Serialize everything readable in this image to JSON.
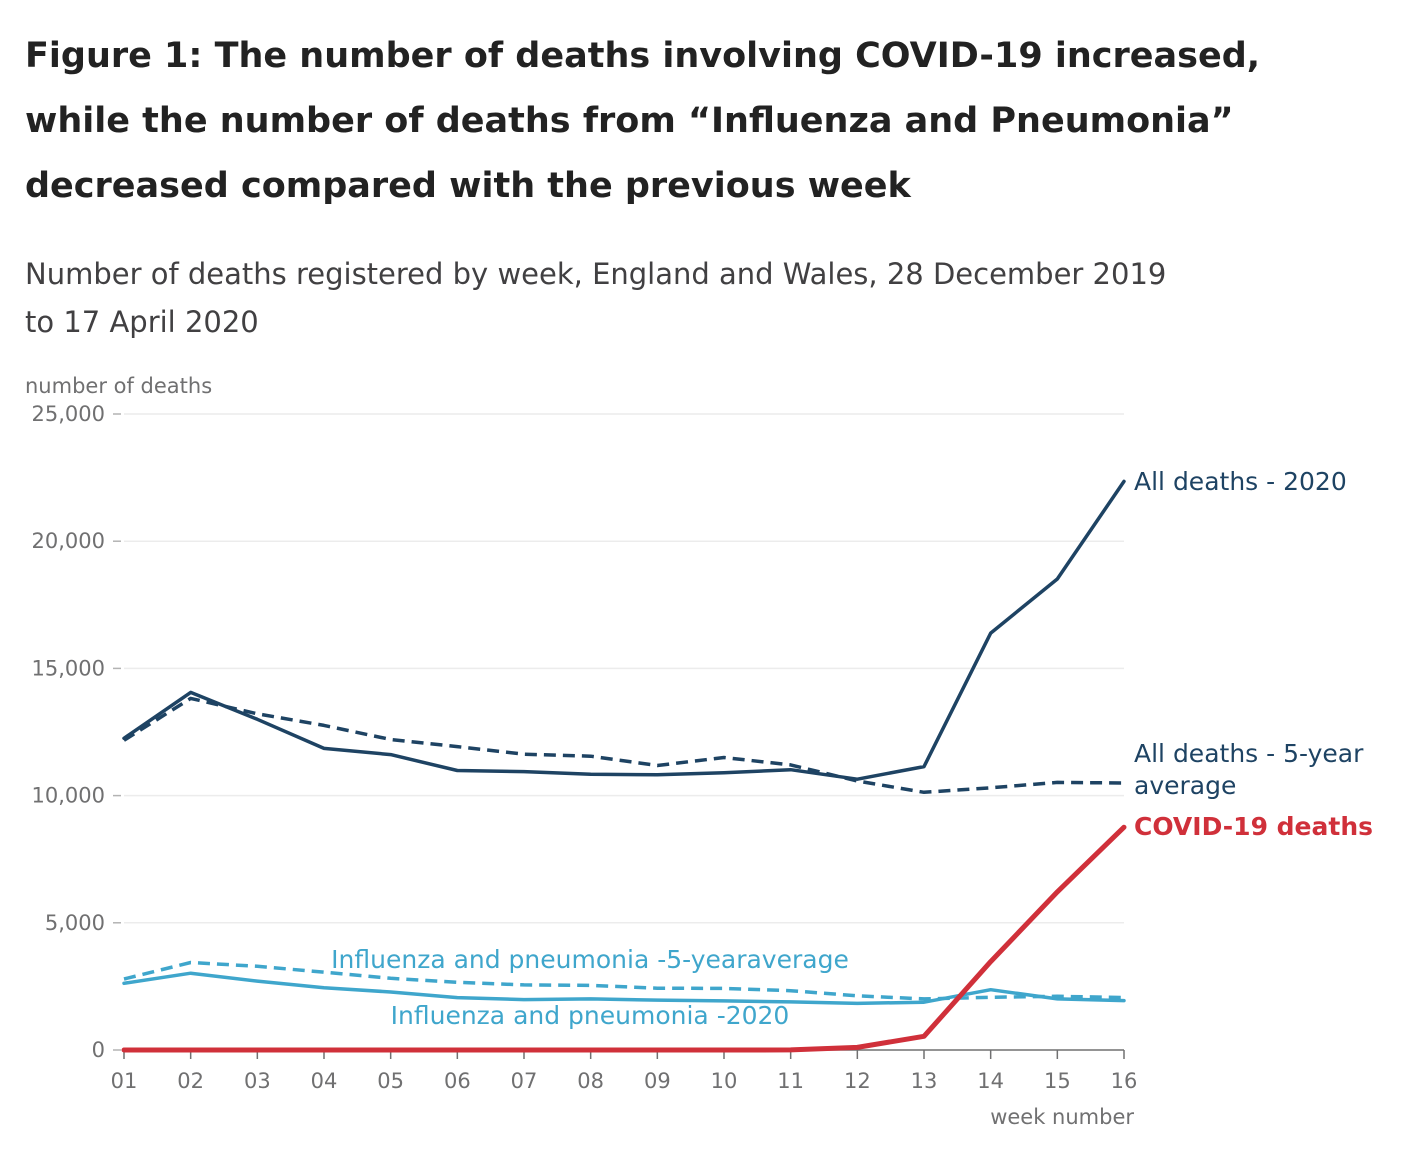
{
  "title_lines": [
    "Figure 1: The number of deaths involving COVID-19 increased,",
    "while the number of deaths from “Influenza and Pneumonia”",
    "decreased compared with the previous week"
  ],
  "subtitle_lines": [
    "Number of deaths registered by week, England and Wales, 28 December 2019",
    "to 17 April 2020"
  ],
  "chart_data": {
    "type": "line",
    "title": "Figure 1: The number of deaths involving COVID-19 increased, while the number of deaths from “Influenza and Pneumonia” decreased compared with the previous week",
    "subtitle": "Number of deaths registered by week, England and Wales, 28 December 2019 to 17 April 2020",
    "xlabel": "week number",
    "ylabel": "number of deaths",
    "ylim": [
      0,
      25000
    ],
    "yticks": [
      0,
      5000,
      10000,
      15000,
      20000,
      25000
    ],
    "ytick_labels": [
      "0",
      "5,000",
      "10,000",
      "15,000",
      "20,000",
      "25,000"
    ],
    "x": [
      "01",
      "02",
      "03",
      "04",
      "05",
      "06",
      "07",
      "08",
      "09",
      "10",
      "11",
      "12",
      "13",
      "14",
      "15",
      "16"
    ],
    "grid": "horizontal",
    "legend": "direct labels at line ends",
    "series": [
      {
        "name": "All deaths - 2020",
        "label_lines": [
          "All deaths - 2020"
        ],
        "color": "#1e4363",
        "style": "solid",
        "values": [
          12254,
          14058,
          13000,
          11856,
          11612,
          10986,
          10944,
          10841,
          10816,
          10895,
          11019,
          10645,
          11141,
          16387,
          18516,
          22351
        ]
      },
      {
        "name": "All deaths - 5-year average",
        "label_lines": [
          "All deaths - 5-year",
          "average"
        ],
        "color": "#1e4363",
        "style": "dashed",
        "values": [
          12175,
          13822,
          13216,
          12760,
          12206,
          11925,
          11627,
          11548,
          11183,
          11498,
          11205,
          10573,
          10130,
          10305,
          10520,
          10497
        ]
      },
      {
        "name": "COVID-19 deaths",
        "label_lines": [
          "COVID-19 deaths"
        ],
        "color": "#d0303a",
        "style": "solid-bold",
        "values": [
          0,
          0,
          0,
          0,
          0,
          0,
          0,
          0,
          0,
          0,
          5,
          103,
          539,
          3475,
          6213,
          8758
        ]
      },
      {
        "name": "Influenza and pneumonia -5-yearaverage",
        "label_lines": [
          "Influenza and pneumonia -5-yearaverage"
        ],
        "color": "#3fa6cc",
        "style": "dashed",
        "values": [
          2790,
          3440,
          3290,
          3060,
          2820,
          2660,
          2560,
          2540,
          2430,
          2420,
          2330,
          2130,
          2010,
          2070,
          2110,
          2060
        ]
      },
      {
        "name": "Influenza and pneumonia -2020",
        "label_lines": [
          "Influenza and pneumonia -2020"
        ],
        "color": "#3fa6cc",
        "style": "solid",
        "values": [
          2620,
          3020,
          2710,
          2450,
          2280,
          2060,
          1980,
          2010,
          1960,
          1930,
          1890,
          1830,
          1880,
          2370,
          2010,
          1940
        ]
      }
    ]
  }
}
